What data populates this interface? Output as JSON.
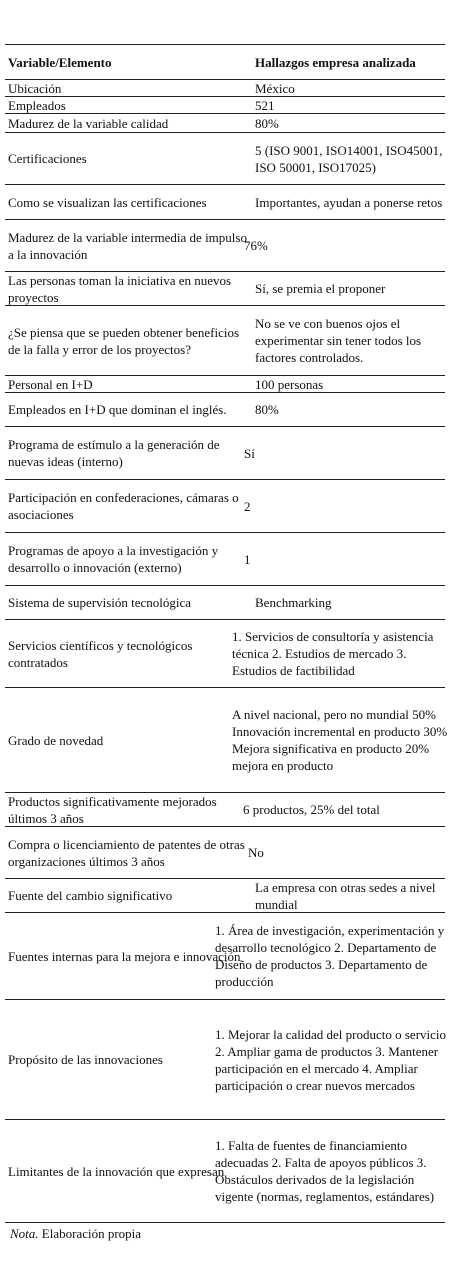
{
  "table": {
    "header": [
      "Variable/Elemento",
      "Hallazgos empresa analizada"
    ],
    "rows": [
      [
        "Ubicación",
        "México"
      ],
      [
        "Empleados",
        "521"
      ],
      [
        "Madurez de la variable calidad",
        "80%"
      ],
      [
        "Certificaciones",
        "5 (ISO 9001, ISO14001, ISO45001, ISO 50001, ISO17025)"
      ],
      [
        "Como se visualizan las certificaciones",
        "Importantes, ayudan a ponerse retos"
      ],
      [
        "Madurez de la variable intermedia de impulso a la innovación",
        "76%"
      ],
      [
        "Las personas toman la iniciativa en nuevos proyectos",
        "Sí, se premia el proponer"
      ],
      [
        "¿Se piensa que se pueden obtener beneficios de la falla y error de los proyectos?",
        "No se ve con buenos ojos el experimentar sin tener todos los factores controlados."
      ],
      [
        "Personal en I+D",
        "100 personas"
      ],
      [
        "Empleados en I+D que dominan el inglés.",
        "80%"
      ],
      [
        "Programa de estímulo a la generación de nuevas ideas (interno)",
        "Sí"
      ],
      [
        "Participación en confederaciones, cámaras o asociaciones",
        "2"
      ],
      [
        "Programas de apoyo a la investigación y desarrollo o innovación (externo)",
        "1"
      ],
      [
        "Sistema de supervisión tecnológica",
        "Benchmarking"
      ],
      [
        "Servicios científicos y tecnológicos contratados",
        "1. Servicios de consultoría y asistencia técnica 2. Estudios de mercado 3. Estudios de factibilidad"
      ],
      [
        "Grado de novedad",
        "A nivel nacional, pero no mundial 50% Innovación incremental en producto 30% Mejora significativa en producto 20% mejora en producto"
      ],
      [
        "Productos significativamente mejorados últimos 3 años",
        "6 productos, 25% del total"
      ],
      [
        "Compra o licenciamiento de patentes de otras organizaciones últimos 3 años",
        "No"
      ],
      [
        "Fuente del cambio significativo",
        "La empresa con otras sedes a nivel mundial"
      ],
      [
        "Fuentes internas para la mejora e innovación",
        "1.    Área de investigación, experimentación y desarrollo tecnológico 2.    Departamento de Diseño de productos 3. Departamento de producción"
      ],
      [
        "Propósito de las innovaciones",
        "1.    Mejorar la calidad del producto o servicio 2.    Ampliar gama de productos 3. Mantener participación en el mercado 4.    Ampliar participación o crear nuevos mercados"
      ],
      [
        "Limitantes de la innovación que expresan",
        "1.    Falta de fuentes de financiamiento adecuadas 2. Falta de apoyos públicos 3. Obstáculos derivados de la legislación vigente (normas, reglamentos, estándares)"
      ]
    ]
  },
  "note": {
    "label": "Nota.",
    "text": "Elaboración propia"
  }
}
